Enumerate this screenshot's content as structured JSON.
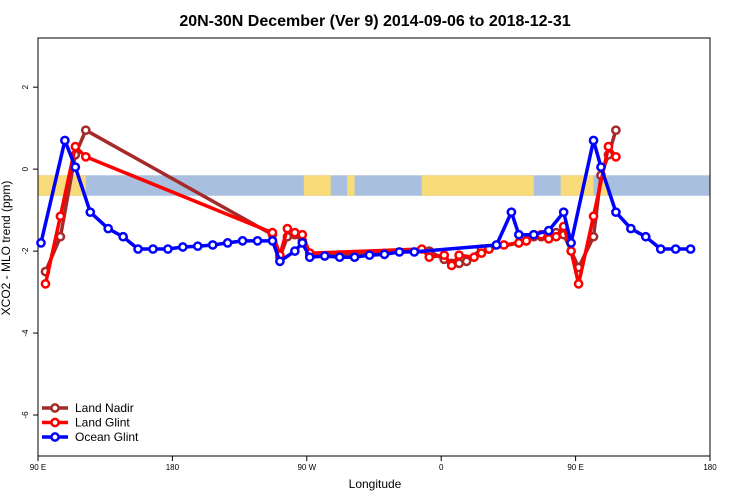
{
  "chart_data": {
    "type": "line",
    "title": "20N-30N December (Ver 9)   2014-09-06 to 2018-12-31",
    "xlabel": "Longitude",
    "ylabel": "XCO2 - MLO trend (ppm)",
    "xlim": [
      90,
      540
    ],
    "ylim": [
      -7,
      3.2
    ],
    "x_ticks": [
      {
        "value": 90,
        "label": "90 E"
      },
      {
        "value": 180,
        "label": "180"
      },
      {
        "value": 270,
        "label": "90 W"
      },
      {
        "value": 360,
        "label": "0"
      },
      {
        "value": 450,
        "label": "90 E"
      },
      {
        "value": 540,
        "label": "180"
      }
    ],
    "y_ticks": [
      {
        "value": 2,
        "label": "2"
      },
      {
        "value": 0,
        "label": "0"
      },
      {
        "value": -2,
        "label": "-2"
      },
      {
        "value": -4,
        "label": "-4"
      },
      {
        "value": -6,
        "label": "-6"
      }
    ],
    "map_band": {
      "ymin": -0.65,
      "ymax": -0.15,
      "ocean_color": "#a8bfdf",
      "land_color": "#fadb7a"
    },
    "legend": {
      "position": "bottom-left"
    },
    "series": [
      {
        "name": "Land Nadir",
        "color": "#a52a2a",
        "points": [
          [
            95,
            -2.5
          ],
          [
            105,
            -1.65
          ],
          [
            115,
            0.35
          ],
          [
            122,
            0.95
          ],
          [
            247,
            -1.6
          ],
          [
            252,
            -2.15
          ],
          [
            257,
            -1.65
          ],
          [
            262,
            -1.6
          ],
          [
            267,
            -1.75
          ],
          [
            272,
            -2.1
          ],
          [
            352,
            -2.0
          ],
          [
            362,
            -2.2
          ],
          [
            367,
            -2.3
          ],
          [
            372,
            -2.3
          ],
          [
            377,
            -2.25
          ],
          [
            387,
            -1.95
          ],
          [
            392,
            -1.95
          ],
          [
            412,
            -1.8
          ],
          [
            417,
            -1.75
          ],
          [
            422,
            -1.65
          ],
          [
            427,
            -1.65
          ],
          [
            432,
            -1.65
          ],
          [
            437,
            -1.55
          ],
          [
            442,
            -1.6
          ],
          [
            452,
            -2.4
          ],
          [
            462,
            -1.65
          ],
          [
            467,
            -0.15
          ],
          [
            472,
            0.35
          ],
          [
            477,
            0.95
          ]
        ]
      },
      {
        "name": "Land Glint",
        "color": "#ff0000",
        "points": [
          [
            95,
            -2.8
          ],
          [
            105,
            -1.15
          ],
          [
            115,
            0.55
          ],
          [
            122,
            0.3
          ],
          [
            247,
            -1.55
          ],
          [
            252,
            -2.1
          ],
          [
            257,
            -1.45
          ],
          [
            262,
            -1.55
          ],
          [
            267,
            -1.6
          ],
          [
            272,
            -2.05
          ],
          [
            347,
            -1.95
          ],
          [
            352,
            -2.15
          ],
          [
            362,
            -2.1
          ],
          [
            367,
            -2.35
          ],
          [
            372,
            -2.1
          ],
          [
            382,
            -2.15
          ],
          [
            387,
            -2.05
          ],
          [
            392,
            -1.95
          ],
          [
            402,
            -1.85
          ],
          [
            412,
            -1.8
          ],
          [
            417,
            -1.75
          ],
          [
            422,
            -1.6
          ],
          [
            427,
            -1.6
          ],
          [
            432,
            -1.7
          ],
          [
            437,
            -1.65
          ],
          [
            442,
            -1.4
          ],
          [
            447,
            -2.0
          ],
          [
            452,
            -2.8
          ],
          [
            462,
            -1.15
          ],
          [
            472,
            0.55
          ],
          [
            477,
            0.3
          ]
        ]
      },
      {
        "name": "Ocean Glint",
        "color": "#0000ff",
        "points": [
          [
            92,
            -1.8
          ],
          [
            108,
            0.7
          ],
          [
            115,
            0.05
          ],
          [
            125,
            -1.05
          ],
          [
            137,
            -1.45
          ],
          [
            147,
            -1.65
          ],
          [
            157,
            -1.95
          ],
          [
            167,
            -1.95
          ],
          [
            177,
            -1.95
          ],
          [
            187,
            -1.9
          ],
          [
            197,
            -1.88
          ],
          [
            207,
            -1.85
          ],
          [
            217,
            -1.8
          ],
          [
            227,
            -1.75
          ],
          [
            237,
            -1.75
          ],
          [
            247,
            -1.75
          ],
          [
            252,
            -2.25
          ],
          [
            262,
            -2.0
          ],
          [
            267,
            -1.8
          ],
          [
            272,
            -2.15
          ],
          [
            282,
            -2.12
          ],
          [
            292,
            -2.15
          ],
          [
            302,
            -2.15
          ],
          [
            312,
            -2.1
          ],
          [
            322,
            -2.08
          ],
          [
            332,
            -2.02
          ],
          [
            342,
            -2.02
          ],
          [
            397,
            -1.85
          ],
          [
            407,
            -1.05
          ],
          [
            412,
            -1.6
          ],
          [
            422,
            -1.6
          ],
          [
            432,
            -1.5
          ],
          [
            442,
            -1.05
          ],
          [
            447,
            -1.8
          ],
          [
            462,
            0.7
          ],
          [
            467,
            0.05
          ],
          [
            477,
            -1.05
          ],
          [
            487,
            -1.45
          ],
          [
            497,
            -1.65
          ],
          [
            507,
            -1.95
          ],
          [
            517,
            -1.95
          ],
          [
            527,
            -1.95
          ]
        ]
      }
    ]
  }
}
